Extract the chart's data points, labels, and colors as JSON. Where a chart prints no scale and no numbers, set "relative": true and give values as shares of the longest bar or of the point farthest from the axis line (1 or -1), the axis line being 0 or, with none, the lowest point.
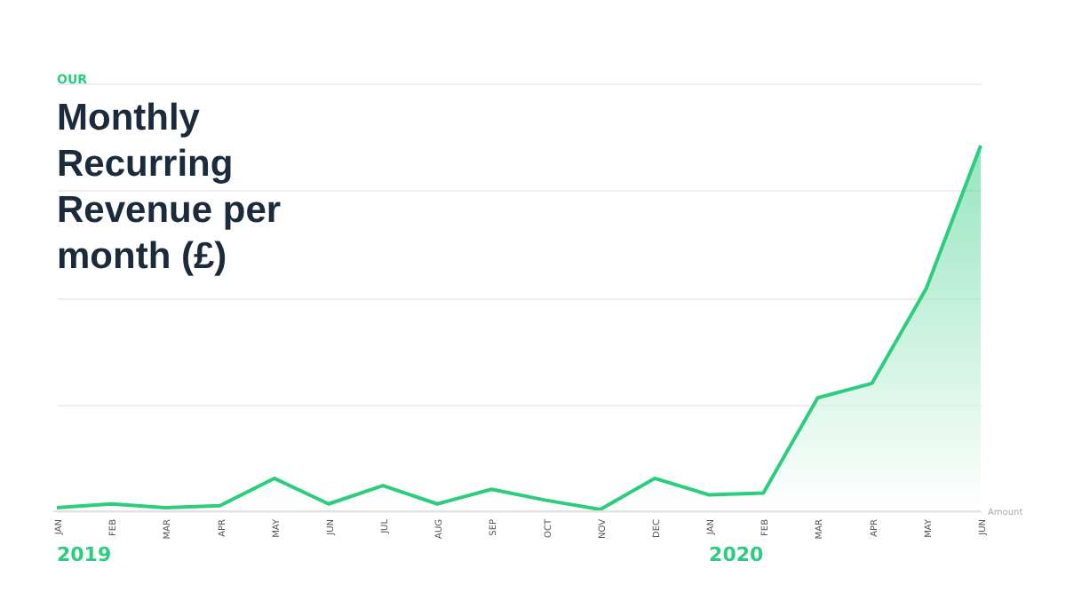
{
  "chart_data": {
    "type": "area",
    "title": "Monthly Recurring Revenue per month (£)",
    "subtitle": "OUR",
    "x": [
      "2019-01",
      "2019-02",
      "2019-03",
      "2019-04",
      "2019-05",
      "2019-06",
      "2019-07",
      "2019-08",
      "2019-09",
      "2019-10",
      "2019-11",
      "2019-12",
      "2020-01",
      "2020-02",
      "2020-03",
      "2020-04",
      "2020-05",
      "2020-06"
    ],
    "xticks": [
      {
        "value": "2019-01",
        "label": "JAN"
      },
      {
        "value": "2019-02",
        "label": "FEB"
      },
      {
        "value": "2019-03",
        "label": "MAR"
      },
      {
        "value": "2019-04",
        "label": "APR"
      },
      {
        "value": "2019-05",
        "label": "MAY"
      },
      {
        "value": "2019-06",
        "label": "JUN"
      },
      {
        "value": "2019-07",
        "label": "JUL"
      },
      {
        "value": "2019-08",
        "label": "AUG"
      },
      {
        "value": "2019-09",
        "label": "SEP"
      },
      {
        "value": "2019-10",
        "label": "OCT"
      },
      {
        "value": "2019-11",
        "label": "NOV"
      },
      {
        "value": "2019-12",
        "label": "DEC"
      },
      {
        "value": "2020-01",
        "label": "JAN"
      },
      {
        "value": "2020-02",
        "label": "FEB"
      },
      {
        "value": "2020-03",
        "label": "MAR"
      },
      {
        "value": "2020-04",
        "label": "APR"
      },
      {
        "value": "2020-05",
        "label": "MAY"
      },
      {
        "value": "2020-06",
        "label": "JUN"
      }
    ],
    "xlim": [
      "2019-01",
      "2020-06"
    ],
    "annotations": [
      "2019",
      "2020"
    ],
    "series": [
      {
        "name": "Amount",
        "color": "#2ecc7f",
        "values": [
          0.01,
          0.02,
          0.01,
          0.015,
          0.09,
          0.02,
          0.07,
          0.02,
          0.06,
          0.03,
          0.005,
          0.09,
          0.045,
          0.05,
          0.31,
          0.35,
          0.61,
          1.0
        ]
      }
    ],
    "relative": true,
    "grid": "y"
  }
}
